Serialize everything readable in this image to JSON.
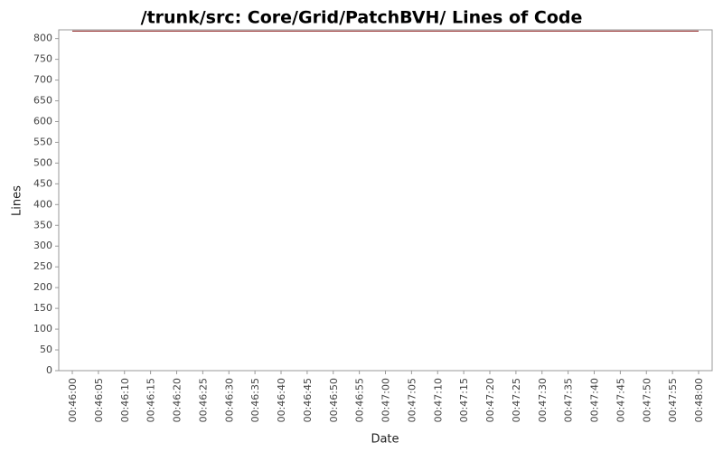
{
  "chart_data": {
    "type": "line",
    "title": "/trunk/src: Core/Grid/PatchBVH/ Lines of Code",
    "x_label": "Date",
    "y_label": "Lines",
    "x": [
      "00:46:00",
      "00:48:00"
    ],
    "series": [
      {
        "name": "Lines",
        "color": "#8b1a1a",
        "values": [
          818,
          818
        ]
      }
    ],
    "ylim": [
      0,
      821
    ],
    "yticks": [
      0,
      50,
      100,
      150,
      200,
      250,
      300,
      350,
      400,
      450,
      500,
      550,
      600,
      650,
      700,
      750,
      800
    ],
    "xticks": [
      "00:46:00",
      "00:46:05",
      "00:46:10",
      "00:46:15",
      "00:46:20",
      "00:46:25",
      "00:46:30",
      "00:46:35",
      "00:46:40",
      "00:46:45",
      "00:46:50",
      "00:46:55",
      "00:47:00",
      "00:47:05",
      "00:47:10",
      "00:47:15",
      "00:47:20",
      "00:47:25",
      "00:47:30",
      "00:47:35",
      "00:47:40",
      "00:47:45",
      "00:47:50",
      "00:47:55",
      "00:48:00"
    ],
    "grid": false
  }
}
